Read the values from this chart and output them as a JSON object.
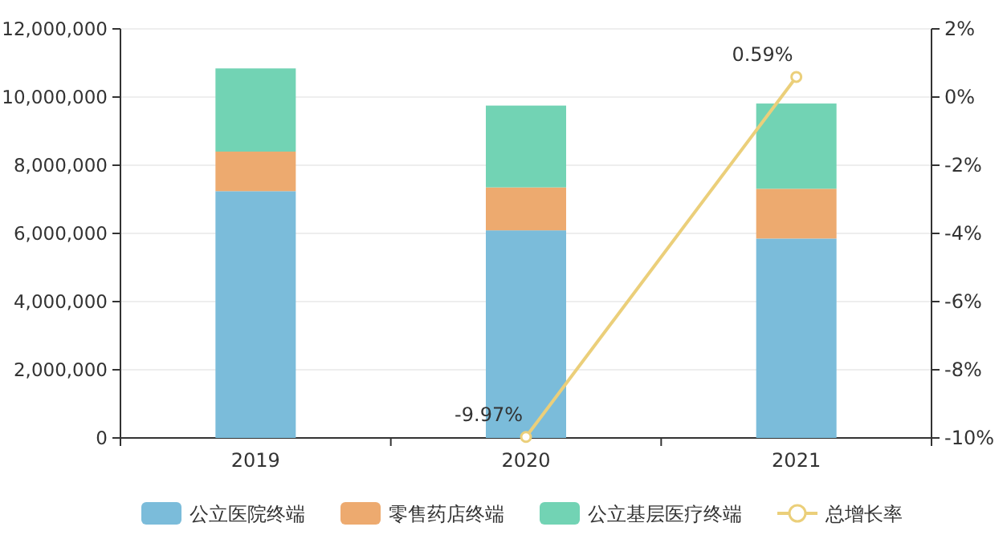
{
  "chart_data": {
    "type": "bar",
    "stacked": true,
    "categories": [
      "2019",
      "2020",
      "2021"
    ],
    "series": [
      {
        "name": "公立医院终端",
        "color": "#7bbcda",
        "values": [
          7240000,
          6090000,
          5850000
        ]
      },
      {
        "name": "零售药店终端",
        "color": "#edaa6f",
        "values": [
          1160000,
          1260000,
          1460000
        ]
      },
      {
        "name": "公立基层医疗终端",
        "color": "#72d3b4",
        "values": [
          2440000,
          2400000,
          2500000
        ]
      },
      {
        "name": "总增长率",
        "type": "line",
        "axis": "y2",
        "color": "#ebcf7a",
        "marker": "circle",
        "values": [
          null,
          -9.97,
          0.59
        ],
        "value_labels": [
          null,
          "-9.97%",
          "0.59%"
        ]
      }
    ],
    "ylim": [
      0,
      12000000
    ],
    "yticks": [
      {
        "value": 0,
        "label": "0"
      },
      {
        "value": 2000000,
        "label": "2,000,000"
      },
      {
        "value": 4000000,
        "label": "4,000,000"
      },
      {
        "value": 6000000,
        "label": "6,000,000"
      },
      {
        "value": 8000000,
        "label": "8,000,000"
      },
      {
        "value": 10000000,
        "label": "10,000,000"
      },
      {
        "value": 12000000,
        "label": "12,000,000"
      }
    ],
    "y2lim": [
      -10,
      2
    ],
    "y2ticks": [
      {
        "value": -10,
        "label": "-10%"
      },
      {
        "value": -8,
        "label": "-8%"
      },
      {
        "value": -6,
        "label": "-6%"
      },
      {
        "value": -4,
        "label": "-4%"
      },
      {
        "value": -2,
        "label": "-2%"
      },
      {
        "value": 0,
        "label": "0%"
      },
      {
        "value": 2,
        "label": "2%"
      }
    ],
    "grid": "y",
    "legend": "bottom"
  }
}
